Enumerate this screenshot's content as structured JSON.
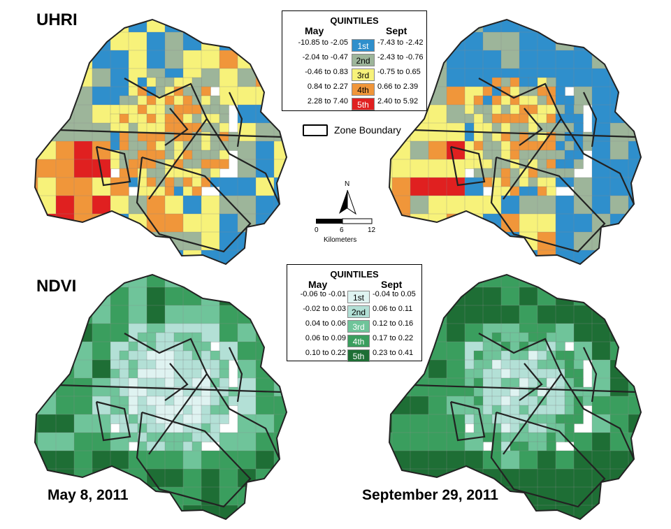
{
  "panels": {
    "uhri_title": "UHRI",
    "ndvi_title": "NDVI",
    "date_may": "May 8, 2011",
    "date_sept": "September 29, 2011"
  },
  "uhri_legend": {
    "title": "QUINTILES",
    "col_may": "May",
    "col_sept": "Sept",
    "rows": [
      {
        "may": "-10.85 to -2.05",
        "q": "1st",
        "sept": "-7.43 to -2.42",
        "color": "#2f8fcc",
        "text_color": "#ffffff"
      },
      {
        "may": "-2.04 to -0.47",
        "q": "2nd",
        "sept": "-2.43 to -0.76",
        "color": "#9db59a",
        "text_color": "#000000"
      },
      {
        "may": "-0.46 to 0.83",
        "q": "3rd",
        "sept": "-0.75 to 0.65",
        "color": "#f7f27a",
        "text_color": "#000000"
      },
      {
        "may": "0.84  to 2.27",
        "q": "4th",
        "sept": "0.66 to 2.39",
        "color": "#f0963a",
        "text_color": "#000000"
      },
      {
        "may": "2.28  to 7.40",
        "q": "5th",
        "sept": "2.40 to 5.92",
        "color": "#e02020",
        "text_color": "#ffffff"
      }
    ]
  },
  "ndvi_legend": {
    "title": "QUINTILES",
    "col_may": "May",
    "col_sept": "Sept",
    "rows": [
      {
        "may": "-0.06 to -0.01",
        "q": "1st",
        "sept": "-0.04 to 0.05",
        "color": "#dff3f1",
        "text_color": "#000000"
      },
      {
        "may": "-0.02 to 0.03",
        "q": "2nd",
        "sept": "0.06 to 0.11",
        "color": "#b3e0d6",
        "text_color": "#000000"
      },
      {
        "may": "0.04 to 0.06",
        "q": "3rd",
        "sept": "0.12 to 0.16",
        "color": "#6fc49a",
        "text_color": "#ffffff"
      },
      {
        "may": "0.06 to 0.09",
        "q": "4th",
        "sept": "0.17 to 0.22",
        "color": "#3a9e5e",
        "text_color": "#ffffff"
      },
      {
        "may": "0.10 to 0.22",
        "q": "5th",
        "sept": "0.23 to 0.41",
        "color": "#1e6e35",
        "text_color": "#ffffff"
      }
    ]
  },
  "zone_legend": {
    "label": "Zone Boundary"
  },
  "north_arrow": {
    "label": "N"
  },
  "scalebar": {
    "ticks": [
      "0",
      "6",
      "12"
    ],
    "units": "Kilometers"
  },
  "colors": {
    "uhri": [
      "#2f8fcc",
      "#9db59a",
      "#f7f27a",
      "#f0963a",
      "#e02020"
    ],
    "ndvi": [
      "#dff3f1",
      "#b3e0d6",
      "#6fc49a",
      "#3a9e5e",
      "#1e6e35"
    ],
    "boundary": "#222222"
  }
}
